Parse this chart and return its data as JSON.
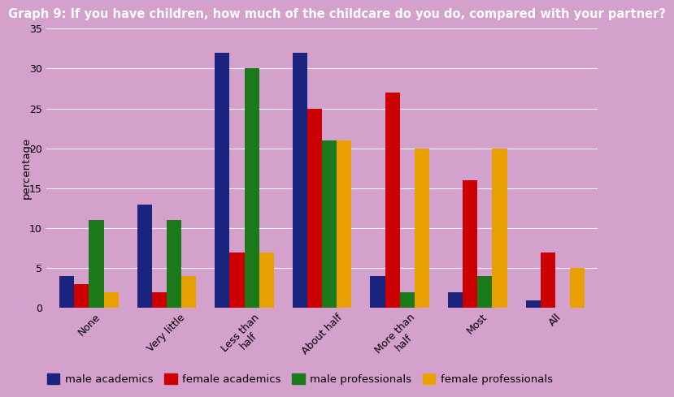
{
  "title": "Graph 9: If you have children, how much of the childcare do you do, compared with your partner?",
  "categories": [
    "None",
    "Very little",
    "Less than\nhalf",
    "About half",
    "More than\nhalf",
    "Most",
    "All"
  ],
  "series": {
    "male academics": [
      4,
      13,
      32,
      32,
      4,
      2,
      1
    ],
    "female academics": [
      3,
      2,
      7,
      25,
      27,
      16,
      7
    ],
    "male professionals": [
      11,
      11,
      30,
      21,
      2,
      4,
      0
    ],
    "female professionals": [
      2,
      4,
      7,
      21,
      20,
      20,
      5
    ]
  },
  "colors": {
    "male academics": "#1a237e",
    "female academics": "#cc0000",
    "male professionals": "#1a7a1a",
    "female professionals": "#e8a000"
  },
  "ylabel": "percentage",
  "ylim": [
    0,
    35
  ],
  "yticks": [
    0,
    5,
    10,
    15,
    20,
    25,
    30,
    35
  ],
  "background_color": "#d4a0cc",
  "title_fontsize": 10.5,
  "legend_fontsize": 9.5,
  "bar_width": 0.19,
  "grid_color": "#ffffff"
}
